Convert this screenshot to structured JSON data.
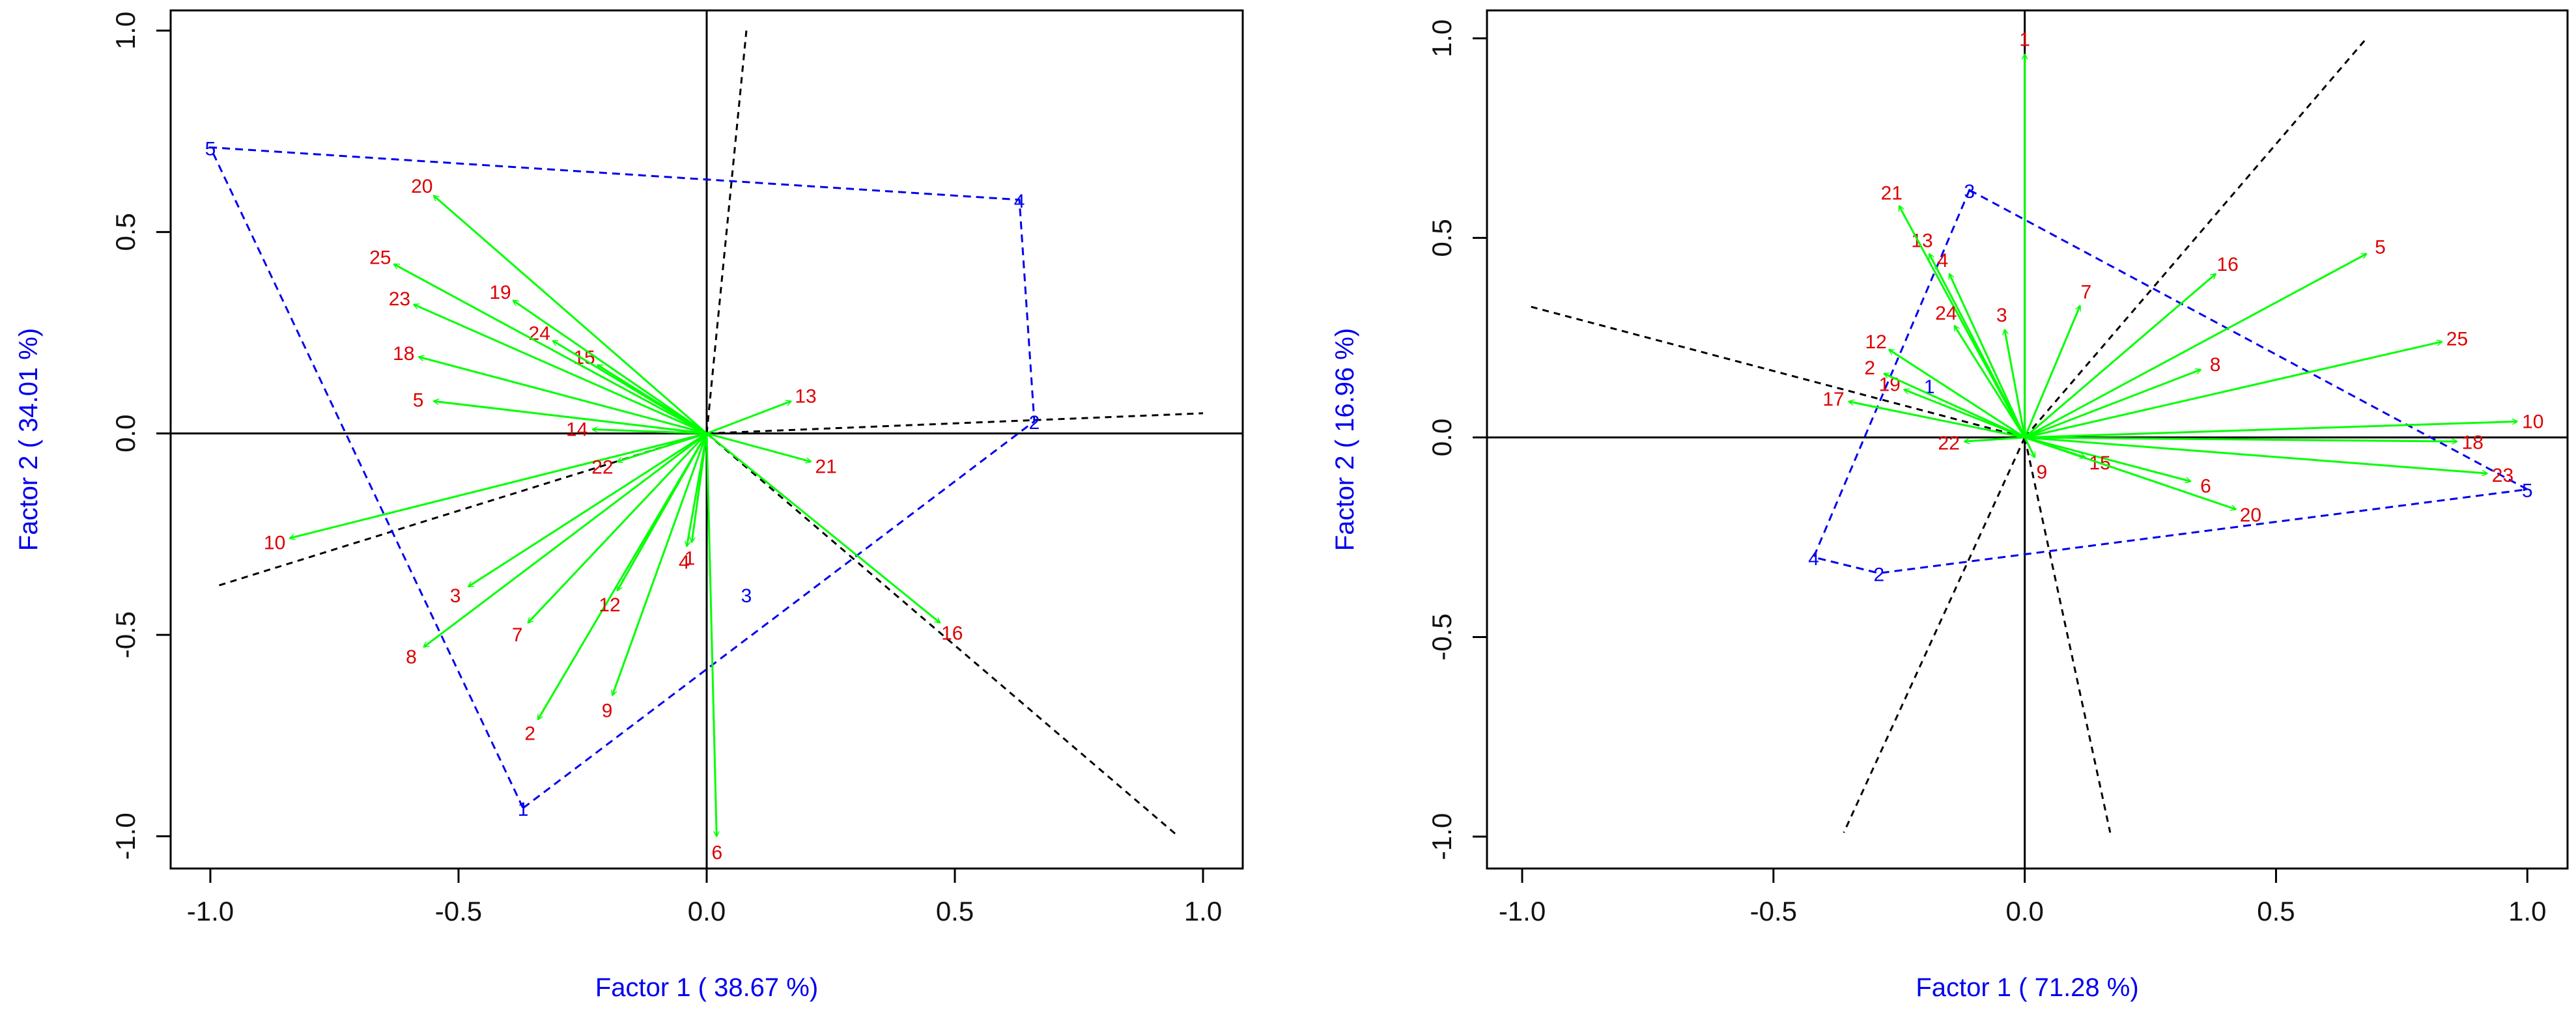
{
  "colors": {
    "arrow": "#00ff00",
    "variable_label": "#dd0000",
    "polygon": "#0000ee",
    "dashed": "#000000",
    "axis_title": "#0000ee",
    "frame": "#000000"
  },
  "chart_data": [
    {
      "type": "scatter",
      "subtype": "biplot",
      "xlabel": "Factor 1 ( 38.67 %)",
      "ylabel": "Factor 2 ( 34.01 %)",
      "xlim": [
        -1.08,
        1.08
      ],
      "ylim": [
        -1.08,
        1.05
      ],
      "xticks": [
        -1.0,
        -0.5,
        0.0,
        0.5,
        1.0
      ],
      "xtick_labels": [
        "-1.0",
        "-0.5",
        "0.0",
        "0.5",
        "1.0"
      ],
      "yticks": [
        -1.0,
        -0.5,
        0.0,
        0.5,
        1.0
      ],
      "ytick_labels": [
        "-1.0",
        "-0.5",
        "0.0",
        "0.5",
        "1.0"
      ],
      "vectors": [
        {
          "label": "1",
          "x": -0.03,
          "y": -0.27
        },
        {
          "label": "2",
          "x": -0.34,
          "y": -0.71
        },
        {
          "label": "3",
          "x": -0.48,
          "y": -0.38
        },
        {
          "label": "4",
          "x": -0.04,
          "y": -0.28
        },
        {
          "label": "5",
          "x": -0.55,
          "y": 0.08
        },
        {
          "label": "6",
          "x": 0.02,
          "y": -1.0
        },
        {
          "label": "7",
          "x": -0.36,
          "y": -0.47
        },
        {
          "label": "8",
          "x": -0.57,
          "y": -0.53
        },
        {
          "label": "9",
          "x": -0.19,
          "y": -0.65
        },
        {
          "label": "10",
          "x": -0.84,
          "y": -0.26
        },
        {
          "label": "12",
          "x": -0.18,
          "y": -0.39
        },
        {
          "label": "13",
          "x": 0.17,
          "y": 0.08
        },
        {
          "label": "14",
          "x": -0.23,
          "y": 0.01
        },
        {
          "label": "15",
          "x": -0.22,
          "y": 0.17
        },
        {
          "label": "16",
          "x": 0.47,
          "y": -0.47
        },
        {
          "label": "18",
          "x": -0.58,
          "y": 0.19
        },
        {
          "label": "19",
          "x": -0.39,
          "y": 0.33
        },
        {
          "label": "20",
          "x": -0.55,
          "y": 0.59
        },
        {
          "label": "21",
          "x": 0.21,
          "y": -0.07
        },
        {
          "label": "22",
          "x": -0.18,
          "y": -0.07
        },
        {
          "label": "23",
          "x": -0.59,
          "y": 0.32
        },
        {
          "label": "24",
          "x": -0.31,
          "y": 0.23
        },
        {
          "label": "25",
          "x": -0.63,
          "y": 0.42
        }
      ],
      "polygon": [
        {
          "label": "1",
          "x": -0.37,
          "y": -0.93
        },
        {
          "label": "2",
          "x": 0.66,
          "y": 0.03
        },
        {
          "label": "4",
          "x": 0.63,
          "y": 0.58
        },
        {
          "label": "5",
          "x": -1.0,
          "y": 0.71
        }
      ],
      "extra_points": [
        {
          "label": "3",
          "x": 0.08,
          "y": -0.4
        }
      ],
      "dashed_lines": [
        {
          "from": [
            0.0,
            0.0
          ],
          "to": [
            0.08,
            1.0
          ]
        },
        {
          "from": [
            0.0,
            0.0
          ],
          "to": [
            1.0,
            0.05
          ]
        },
        {
          "from": [
            0.0,
            0.0
          ],
          "to": [
            -0.99,
            -0.38
          ]
        },
        {
          "from": [
            0.0,
            0.0
          ],
          "to": [
            0.95,
            -1.0
          ]
        }
      ]
    },
    {
      "type": "scatter",
      "subtype": "biplot",
      "xlabel": "Factor 1 ( 71.28 %)",
      "ylabel": "Factor 2 ( 16.96 %)",
      "xlim": [
        -1.07,
        1.08
      ],
      "ylim": [
        -1.08,
        1.07
      ],
      "xticks": [
        -1.0,
        -0.5,
        0.0,
        0.5,
        1.0
      ],
      "xtick_labels": [
        "-1.0",
        "-0.5",
        "0.0",
        "0.5",
        "1.0"
      ],
      "yticks": [
        -1.0,
        -0.5,
        0.0,
        0.5,
        1.0
      ],
      "ytick_labels": [
        "-1.0",
        "-0.5",
        "0.0",
        "0.5",
        "1.0"
      ],
      "vectors": [
        {
          "label": "1",
          "x": 0.0,
          "y": 0.96
        },
        {
          "label": "3",
          "x": -0.04,
          "y": 0.27
        },
        {
          "label": "4",
          "x": -0.15,
          "y": 0.41
        },
        {
          "label": "5",
          "x": 0.68,
          "y": 0.46
        },
        {
          "label": "6",
          "x": 0.33,
          "y": -0.11
        },
        {
          "label": "7",
          "x": 0.11,
          "y": 0.33
        },
        {
          "label": "8",
          "x": 0.35,
          "y": 0.17
        },
        {
          "label": "9",
          "x": 0.02,
          "y": -0.05
        },
        {
          "label": "10",
          "x": 0.98,
          "y": 0.04
        },
        {
          "label": "12",
          "x": -0.27,
          "y": 0.22
        },
        {
          "label": "13",
          "x": -0.19,
          "y": 0.46
        },
        {
          "label": "15",
          "x": 0.12,
          "y": -0.05
        },
        {
          "label": "16",
          "x": 0.38,
          "y": 0.41
        },
        {
          "label": "17",
          "x": -0.35,
          "y": 0.09
        },
        {
          "label": "18",
          "x": 0.86,
          "y": -0.01
        },
        {
          "label": "19",
          "x": -0.24,
          "y": 0.12
        },
        {
          "label": "20",
          "x": 0.42,
          "y": -0.18
        },
        {
          "label": "21",
          "x": -0.25,
          "y": 0.58
        },
        {
          "label": "22",
          "x": -0.12,
          "y": -0.01
        },
        {
          "label": "23",
          "x": 0.92,
          "y": -0.09
        },
        {
          "label": "24",
          "x": -0.14,
          "y": 0.28
        },
        {
          "label": "25",
          "x": 0.83,
          "y": 0.24
        },
        {
          "label": "2",
          "x": -0.28,
          "y": 0.16
        }
      ],
      "polygon": [
        {
          "label": "3",
          "x": -0.11,
          "y": 0.62
        },
        {
          "label": "5",
          "x": 1.0,
          "y": -0.13
        },
        {
          "label": "2",
          "x": -0.29,
          "y": -0.34
        },
        {
          "label": "4",
          "x": -0.42,
          "y": -0.3
        }
      ],
      "extra_points": [
        {
          "label": "1",
          "x": -0.19,
          "y": 0.13
        }
      ],
      "dashed_lines": [
        {
          "from": [
            0.0,
            0.0
          ],
          "to": [
            0.68,
            1.0
          ]
        },
        {
          "from": [
            0.0,
            0.0
          ],
          "to": [
            -0.99,
            0.33
          ]
        },
        {
          "from": [
            0.0,
            0.0
          ],
          "to": [
            -0.36,
            -0.99
          ]
        },
        {
          "from": [
            0.0,
            0.0
          ],
          "to": [
            0.17,
            -0.99
          ]
        }
      ]
    }
  ]
}
